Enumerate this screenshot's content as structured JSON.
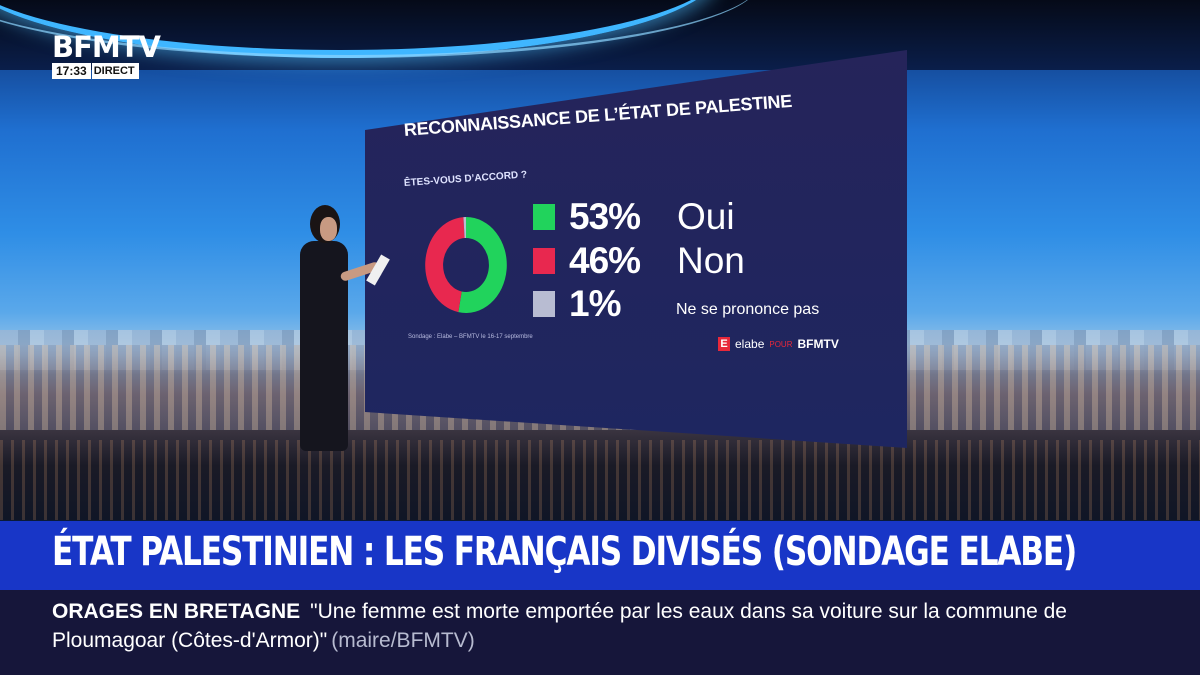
{
  "channel": {
    "name": "BFMTV",
    "time": "17:33",
    "live": "DIRECT"
  },
  "poll": {
    "title": "RECONNAISSANCE DE L’ÉTAT DE PALESTINE",
    "subtitle": "ÊTES-VOUS D’ACCORD ?",
    "results": [
      {
        "value": "53%",
        "label": "Oui",
        "percent": 53,
        "color": "#21d35c"
      },
      {
        "value": "46%",
        "label": "Non",
        "percent": 46,
        "color": "#e8284f"
      },
      {
        "value": "1%",
        "label": "Ne se prononce pas",
        "percent": 1,
        "color": "#b8bcd2"
      }
    ],
    "source": "Sondage : Elabe – BFMTV le 16-17 septembre",
    "brand": {
      "logo": "E",
      "name": "elabe",
      "pour": "POUR",
      "partner": "BFMTV"
    }
  },
  "headline": "ÉTAT PALESTINIEN : LES FRANÇAIS DIVISÉS (SONDAGE ELABE)",
  "ticker": {
    "keyword": "ORAGES EN BRETAGNE",
    "text": "\"Une femme est morte emportée par les eaux dans sa voiture sur la commune de Ploumagoar (Côtes-d'Armor)\"",
    "source": "(maire/BFMTV)"
  }
}
